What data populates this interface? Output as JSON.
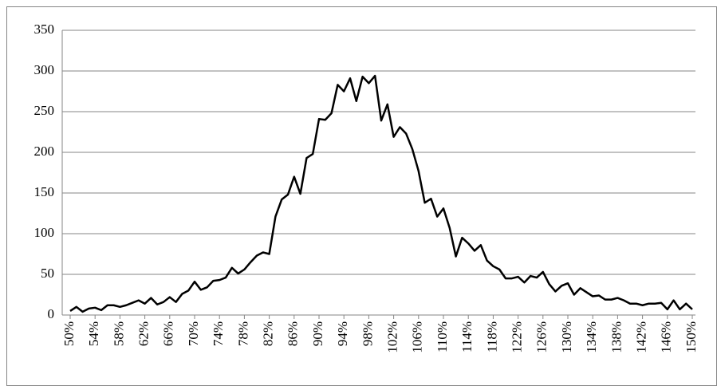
{
  "chart_data": {
    "type": "line",
    "categories": [
      "50%",
      null,
      null,
      null,
      "54%",
      null,
      null,
      null,
      "58%",
      null,
      null,
      null,
      "62%",
      null,
      null,
      null,
      "66%",
      null,
      null,
      null,
      "70%",
      null,
      null,
      null,
      "74%",
      null,
      null,
      null,
      "78%",
      null,
      null,
      null,
      "82%",
      null,
      null,
      null,
      "86%",
      null,
      null,
      null,
      "90%",
      null,
      null,
      null,
      "94%",
      null,
      null,
      null,
      "98%",
      null,
      null,
      null,
      "102%",
      null,
      null,
      null,
      "106%",
      null,
      null,
      null,
      "110%",
      null,
      null,
      null,
      "114%",
      null,
      null,
      null,
      "118%",
      null,
      null,
      null,
      "122%",
      null,
      null,
      null,
      "126%",
      null,
      null,
      null,
      "130%",
      null,
      null,
      null,
      "134%",
      null,
      null,
      null,
      "138%",
      null,
      null,
      null,
      "142%",
      null,
      null,
      null,
      "146%",
      null,
      null,
      null,
      "150%"
    ],
    "values": [
      5,
      10,
      4,
      8,
      9,
      6,
      12,
      12,
      10,
      12,
      15,
      18,
      14,
      21,
      13,
      16,
      22,
      16,
      26,
      30,
      41,
      31,
      34,
      42,
      43,
      46,
      58,
      51,
      56,
      65,
      73,
      77,
      75,
      121,
      142,
      148,
      170,
      149,
      193,
      198,
      241,
      240,
      248,
      283,
      275,
      291,
      263,
      293,
      285,
      294,
      239,
      259,
      219,
      231,
      223,
      204,
      177,
      138,
      143,
      121,
      131,
      107,
      72,
      95,
      88,
      79,
      86,
      67,
      60,
      56,
      45,
      45,
      47,
      40,
      48,
      46,
      53,
      38,
      29,
      36,
      39,
      25,
      33,
      28,
      23,
      24,
      19,
      19,
      21,
      18,
      14,
      14,
      12,
      14,
      14,
      15,
      7,
      18,
      7,
      14,
      7
    ],
    "color": "#000000",
    "ylim": [
      0,
      350
    ],
    "yticks": [
      0,
      50,
      100,
      150,
      200,
      250,
      300,
      350
    ],
    "grid": true
  }
}
